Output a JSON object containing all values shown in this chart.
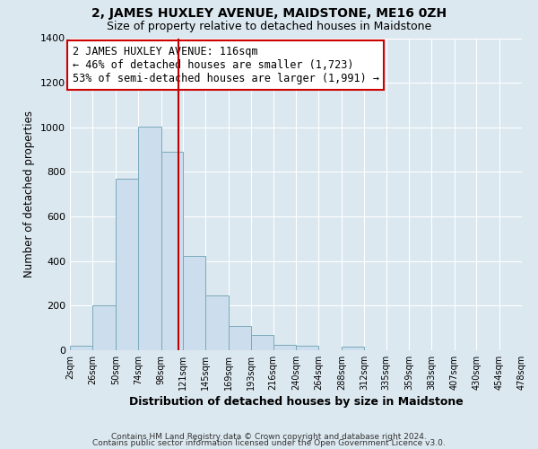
{
  "title": "2, JAMES HUXLEY AVENUE, MAIDSTONE, ME16 0ZH",
  "subtitle": "Size of property relative to detached houses in Maidstone",
  "xlabel": "Distribution of detached houses by size in Maidstone",
  "ylabel": "Number of detached properties",
  "bar_color": "#ccdded",
  "bar_edge_color": "#7aaabb",
  "bin_edges": [
    2,
    26,
    50,
    74,
    98,
    121,
    145,
    169,
    193,
    216,
    240,
    264,
    288,
    312,
    335,
    359,
    383,
    407,
    430,
    454,
    478
  ],
  "bin_labels": [
    "2sqm",
    "26sqm",
    "50sqm",
    "74sqm",
    "98sqm",
    "121sqm",
    "145sqm",
    "169sqm",
    "193sqm",
    "216sqm",
    "240sqm",
    "264sqm",
    "288sqm",
    "312sqm",
    "335sqm",
    "359sqm",
    "383sqm",
    "407sqm",
    "430sqm",
    "454sqm",
    "478sqm"
  ],
  "counts": [
    20,
    200,
    770,
    1005,
    890,
    425,
    245,
    110,
    70,
    25,
    20,
    0,
    15,
    0,
    0,
    0,
    0,
    0,
    0,
    0
  ],
  "vline_x": 116,
  "vline_color": "#bb0000",
  "annotation_text": "2 JAMES HUXLEY AVENUE: 116sqm\n← 46% of detached houses are smaller (1,723)\n53% of semi-detached houses are larger (1,991) →",
  "ylim": [
    0,
    1400
  ],
  "yticks": [
    0,
    200,
    400,
    600,
    800,
    1000,
    1200,
    1400
  ],
  "footer1": "Contains HM Land Registry data © Crown copyright and database right 2024.",
  "footer2": "Contains public sector information licensed under the Open Government Licence v3.0.",
  "background_color": "#dce8f0",
  "grid_color": "#ffffff",
  "title_fontsize": 10,
  "subtitle_fontsize": 9,
  "annotation_fontsize": 8.5,
  "footer_fontsize": 6.5
}
